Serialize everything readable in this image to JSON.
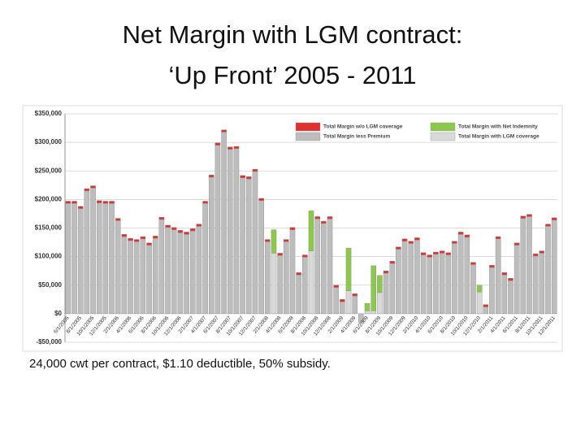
{
  "title_lines": [
    "Net Margin with LGM contract:",
    "‘Up Front’ 2005 - 2011"
  ],
  "caption": "24,000 cwt per contract, $1.10 deductible, 50% subsidy.",
  "chart_data": {
    "type": "bar",
    "categories": [
      "6/1/2005",
      null,
      "8/1/2005",
      null,
      "10/1/2005",
      null,
      "12/1/2005",
      null,
      "2/1/2006",
      null,
      "4/1/2006",
      null,
      "6/1/2006",
      null,
      "8/1/2006",
      null,
      "10/1/2006",
      null,
      "12/1/2006",
      null,
      "2/1/2007",
      null,
      "4/1/2007",
      null,
      "6/1/2007",
      null,
      "8/1/2007",
      null,
      "10/1/2007",
      null,
      "12/1/2007",
      null,
      "2/1/2008",
      null,
      "4/1/2008",
      null,
      "6/1/2008",
      null,
      "8/1/2008",
      null,
      "10/1/2008",
      null,
      "12/1/2008",
      null,
      "2/1/2009",
      null,
      "4/1/2009",
      null,
      "6/1/2009",
      null,
      "8/1/2009",
      null,
      "10/1/2009",
      null,
      "12/1/2009",
      null,
      "2/1/2010",
      null,
      "4/1/2010",
      null,
      "6/1/2010",
      null,
      "8/1/2010",
      null,
      "10/1/2010",
      null,
      "12/1/2010",
      null,
      "2/1/2011",
      null,
      "4/1/2011",
      null,
      "6/1/2011",
      null,
      "8/1/2011",
      null,
      "10/1/2011",
      null,
      "12/1/2011"
    ],
    "series": [
      {
        "name": "Total Margin less Premium",
        "color": "#bdbdbd",
        "values": [
          193000,
          193000,
          184000,
          215000,
          220000,
          194000,
          193000,
          193000,
          163000,
          135000,
          128000,
          126000,
          131000,
          120000,
          132000,
          165000,
          151000,
          147000,
          142000,
          139000,
          145000,
          153000,
          193000,
          239000,
          295000,
          318000,
          288000,
          289000,
          238000,
          236000,
          249000,
          198000,
          126000,
          null,
          102000,
          126000,
          147000,
          68000,
          99000,
          null,
          166000,
          158000,
          166000,
          46000,
          21000,
          null,
          31000,
          -15000,
          null,
          null,
          null,
          71000,
          88000,
          113000,
          127000,
          123000,
          129000,
          103000,
          99000,
          104000,
          106000,
          103000,
          123000,
          139000,
          134000,
          86000,
          null,
          12000,
          81000,
          131000,
          68000,
          58000,
          120000,
          167000,
          170000,
          101000,
          106000,
          153000,
          164000
        ]
      },
      {
        "name": "Total Margin with LGM coverage",
        "color": "#d9d9d9",
        "values": [
          null,
          null,
          null,
          null,
          null,
          null,
          null,
          null,
          null,
          null,
          null,
          null,
          null,
          null,
          null,
          null,
          null,
          null,
          null,
          null,
          null,
          null,
          null,
          null,
          null,
          null,
          null,
          null,
          null,
          null,
          null,
          null,
          null,
          106000,
          null,
          null,
          null,
          null,
          null,
          110000,
          null,
          null,
          null,
          null,
          null,
          40000,
          null,
          null,
          5000,
          5000,
          37000,
          null,
          null,
          null,
          null,
          null,
          null,
          null,
          null,
          null,
          null,
          null,
          null,
          null,
          null,
          null,
          38000,
          null,
          null,
          null,
          null,
          null,
          null,
          null,
          null,
          null,
          null,
          null,
          null
        ]
      },
      {
        "name": "Total Margin w/o LGM coverage",
        "color": "#e03030",
        "values": [
          4000,
          4000,
          4000,
          4000,
          4000,
          4000,
          4000,
          4000,
          4000,
          4000,
          4000,
          4000,
          4000,
          4000,
          4000,
          4000,
          4000,
          4000,
          4000,
          4000,
          4000,
          4000,
          4000,
          4000,
          4000,
          4000,
          4000,
          4000,
          4000,
          4000,
          4000,
          4000,
          4000,
          null,
          4000,
          4000,
          4000,
          4000,
          4000,
          null,
          4000,
          4000,
          4000,
          4000,
          4000,
          null,
          4000,
          null,
          null,
          null,
          null,
          4000,
          4000,
          4000,
          4000,
          4000,
          4000,
          4000,
          4000,
          4000,
          4000,
          4000,
          4000,
          4000,
          4000,
          4000,
          null,
          4000,
          4000,
          4000,
          4000,
          4000,
          4000,
          4000,
          4000,
          4000,
          4000,
          4000,
          4000
        ]
      },
      {
        "name": "Total Margin with Net Indemnity",
        "color": "#8cc84b",
        "values": [
          null,
          null,
          null,
          null,
          null,
          null,
          null,
          null,
          null,
          null,
          null,
          null,
          null,
          null,
          null,
          null,
          null,
          null,
          null,
          null,
          null,
          null,
          null,
          null,
          null,
          null,
          null,
          null,
          null,
          null,
          null,
          null,
          null,
          41000,
          null,
          null,
          null,
          null,
          null,
          70000,
          null,
          null,
          null,
          null,
          null,
          75000,
          null,
          null,
          13000,
          79000,
          30000,
          null,
          null,
          null,
          null,
          null,
          null,
          null,
          null,
          null,
          null,
          null,
          null,
          null,
          null,
          null,
          12000,
          null,
          null,
          null,
          null,
          null,
          null,
          null,
          null,
          null,
          null,
          null,
          null
        ]
      }
    ],
    "stacked": true,
    "ylim": [
      -50000,
      350000
    ],
    "yticks": [
      {
        "value": -50000,
        "label": "-$50,000"
      },
      {
        "value": 0,
        "label": "$0"
      },
      {
        "value": 50000,
        "label": "$50,000"
      },
      {
        "value": 100000,
        "label": "$100,000"
      },
      {
        "value": 150000,
        "label": "$150,000"
      },
      {
        "value": 200000,
        "label": "$200,000"
      },
      {
        "value": 250000,
        "label": "$250,000"
      },
      {
        "value": 300000,
        "label": "$300,000"
      },
      {
        "value": 350000,
        "label": "$350,000"
      }
    ],
    "grid": true
  }
}
